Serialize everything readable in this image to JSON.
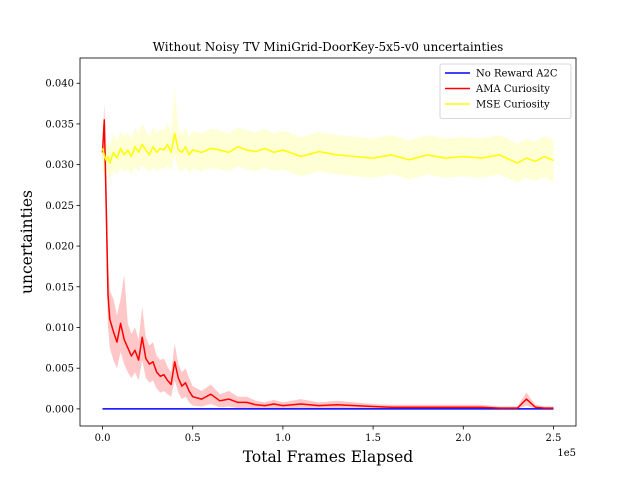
{
  "chart_data": {
    "type": "line",
    "title": "Without Noisy TV MiniGrid-DoorKey-5x5-v0 uncertainties",
    "xlabel": "Total Frames Elapsed",
    "ylabel": "uncertainties",
    "x_offset_text": "1e5",
    "xlim": [
      -12500,
      262500
    ],
    "ylim": [
      -0.0021,
      0.0431
    ],
    "x_ticks": [
      0,
      50000,
      100000,
      150000,
      200000,
      250000
    ],
    "x_tick_labels": [
      "0.0",
      "0.5",
      "1.0",
      "1.5",
      "2.0",
      "2.5"
    ],
    "y_ticks": [
      0.0,
      0.005,
      0.01,
      0.015,
      0.02,
      0.025,
      0.03,
      0.035,
      0.04
    ],
    "y_tick_labels": [
      "0.000",
      "0.005",
      "0.010",
      "0.015",
      "0.020",
      "0.025",
      "0.030",
      "0.035",
      "0.040"
    ],
    "legend_position": "top-right",
    "x": [
      0,
      1000,
      2000,
      3000,
      4000,
      6000,
      8000,
      10000,
      12000,
      14000,
      16000,
      18000,
      20000,
      22000,
      24000,
      26000,
      28000,
      30000,
      32000,
      34000,
      36000,
      38000,
      40000,
      42000,
      44000,
      46000,
      48000,
      50000,
      55000,
      60000,
      65000,
      70000,
      75000,
      80000,
      85000,
      90000,
      95000,
      100000,
      110000,
      120000,
      130000,
      140000,
      150000,
      160000,
      170000,
      180000,
      190000,
      200000,
      210000,
      220000,
      230000,
      235000,
      240000,
      245000,
      250000
    ],
    "series": [
      {
        "name": "No Reward A2C",
        "color": "#0000ff",
        "values": [
          0,
          0,
          0,
          0,
          0,
          0,
          0,
          0,
          0,
          0,
          0,
          0,
          0,
          0,
          0,
          0,
          0,
          0,
          0,
          0,
          0,
          0,
          0,
          0,
          0,
          0,
          0,
          0,
          0,
          0,
          0,
          0,
          0,
          0,
          0,
          0,
          0,
          0,
          0,
          0,
          0,
          0,
          0,
          0,
          0,
          0,
          0,
          0,
          0,
          0,
          0,
          0,
          0,
          0,
          0
        ]
      },
      {
        "name": "AMA Curiosity",
        "color": "#ff0000",
        "band_color": "#ff9999",
        "values": [
          0.0315,
          0.0355,
          0.025,
          0.014,
          0.011,
          0.0095,
          0.0082,
          0.0105,
          0.0085,
          0.0075,
          0.0065,
          0.0072,
          0.006,
          0.0088,
          0.0062,
          0.0055,
          0.0058,
          0.0045,
          0.004,
          0.0042,
          0.0035,
          0.003,
          0.0058,
          0.0038,
          0.0028,
          0.0032,
          0.0022,
          0.0015,
          0.0012,
          0.0018,
          0.001,
          0.0012,
          0.0008,
          0.0008,
          0.0005,
          0.0004,
          0.0006,
          0.0004,
          0.0006,
          0.0004,
          0.0005,
          0.0004,
          0.0003,
          0.0002,
          0.0002,
          0.0002,
          0.0002,
          0.0002,
          0.0002,
          0.0001,
          0.0001,
          0.0012,
          0.0002,
          0.0001,
          0.0001
        ],
        "lower": [
          0.03,
          0.033,
          0.02,
          0.01,
          0.0075,
          0.006,
          0.005,
          0.007,
          0.0055,
          0.0045,
          0.0038,
          0.0045,
          0.0035,
          0.006,
          0.0038,
          0.0032,
          0.0035,
          0.0025,
          0.002,
          0.0022,
          0.0018,
          0.0015,
          0.0035,
          0.002,
          0.0012,
          0.0015,
          0.0008,
          0.0004,
          0.0003,
          0.0006,
          0.0002,
          0.0003,
          0.0001,
          0.0001,
          0.0,
          0.0,
          0.0001,
          0.0,
          0.0001,
          0.0,
          0.0001,
          0.0,
          0.0,
          0.0,
          0.0,
          0.0,
          0.0,
          0.0,
          0.0,
          0.0,
          0.0,
          0.0004,
          0.0,
          0.0,
          0.0
        ],
        "upper": [
          0.033,
          0.0375,
          0.03,
          0.018,
          0.0145,
          0.0135,
          0.0115,
          0.0135,
          0.0165,
          0.0105,
          0.0092,
          0.01,
          0.0085,
          0.0125,
          0.0088,
          0.0078,
          0.0082,
          0.0065,
          0.006,
          0.0062,
          0.0052,
          0.0045,
          0.008,
          0.0055,
          0.0045,
          0.005,
          0.0038,
          0.0028,
          0.0022,
          0.003,
          0.0018,
          0.0022,
          0.0015,
          0.0015,
          0.001,
          0.0008,
          0.0011,
          0.0008,
          0.0012,
          0.0008,
          0.001,
          0.0008,
          0.0006,
          0.0005,
          0.0005,
          0.0005,
          0.0005,
          0.0005,
          0.0005,
          0.0003,
          0.0003,
          0.002,
          0.0005,
          0.0003,
          0.0003
        ]
      },
      {
        "name": "MSE Curiosity",
        "color": "#ffff00",
        "band_color": "#ffffb3",
        "values": [
          0.032,
          0.0312,
          0.0305,
          0.031,
          0.0302,
          0.0315,
          0.0308,
          0.032,
          0.0312,
          0.0318,
          0.031,
          0.0322,
          0.0315,
          0.0325,
          0.0318,
          0.0312,
          0.0322,
          0.0315,
          0.032,
          0.0318,
          0.0325,
          0.0315,
          0.0338,
          0.0318,
          0.0315,
          0.0322,
          0.0312,
          0.0318,
          0.0315,
          0.032,
          0.0318,
          0.0315,
          0.0322,
          0.0318,
          0.0316,
          0.032,
          0.0315,
          0.0318,
          0.031,
          0.0316,
          0.0312,
          0.031,
          0.0308,
          0.0312,
          0.0306,
          0.0312,
          0.0308,
          0.031,
          0.0308,
          0.0312,
          0.0302,
          0.0308,
          0.0304,
          0.031,
          0.0305
        ],
        "lower": [
          0.0295,
          0.029,
          0.0288,
          0.0292,
          0.0282,
          0.0292,
          0.0288,
          0.0298,
          0.029,
          0.0295,
          0.0288,
          0.0298,
          0.0292,
          0.03,
          0.0295,
          0.029,
          0.0298,
          0.0292,
          0.0296,
          0.0294,
          0.03,
          0.0292,
          0.0312,
          0.0294,
          0.0292,
          0.0298,
          0.029,
          0.0295,
          0.0292,
          0.0296,
          0.0294,
          0.0292,
          0.0298,
          0.0294,
          0.0292,
          0.0296,
          0.0292,
          0.0294,
          0.0286,
          0.0292,
          0.0288,
          0.0286,
          0.0284,
          0.0288,
          0.0282,
          0.0288,
          0.0284,
          0.0286,
          0.0284,
          0.0288,
          0.0278,
          0.0284,
          0.028,
          0.0285,
          0.0278
        ],
        "upper": [
          0.0345,
          0.0336,
          0.0324,
          0.0328,
          0.0322,
          0.0338,
          0.0328,
          0.0342,
          0.0334,
          0.034,
          0.0332,
          0.0346,
          0.0338,
          0.035,
          0.0341,
          0.0334,
          0.0346,
          0.0338,
          0.0344,
          0.0342,
          0.0352,
          0.0338,
          0.0395,
          0.0342,
          0.0338,
          0.0346,
          0.0334,
          0.0341,
          0.0338,
          0.0344,
          0.0342,
          0.0338,
          0.0346,
          0.0342,
          0.034,
          0.0344,
          0.0338,
          0.0342,
          0.0334,
          0.034,
          0.0336,
          0.0334,
          0.0332,
          0.0336,
          0.033,
          0.0336,
          0.0332,
          0.0334,
          0.0332,
          0.0336,
          0.0326,
          0.0332,
          0.0328,
          0.0335,
          0.033
        ]
      }
    ]
  }
}
